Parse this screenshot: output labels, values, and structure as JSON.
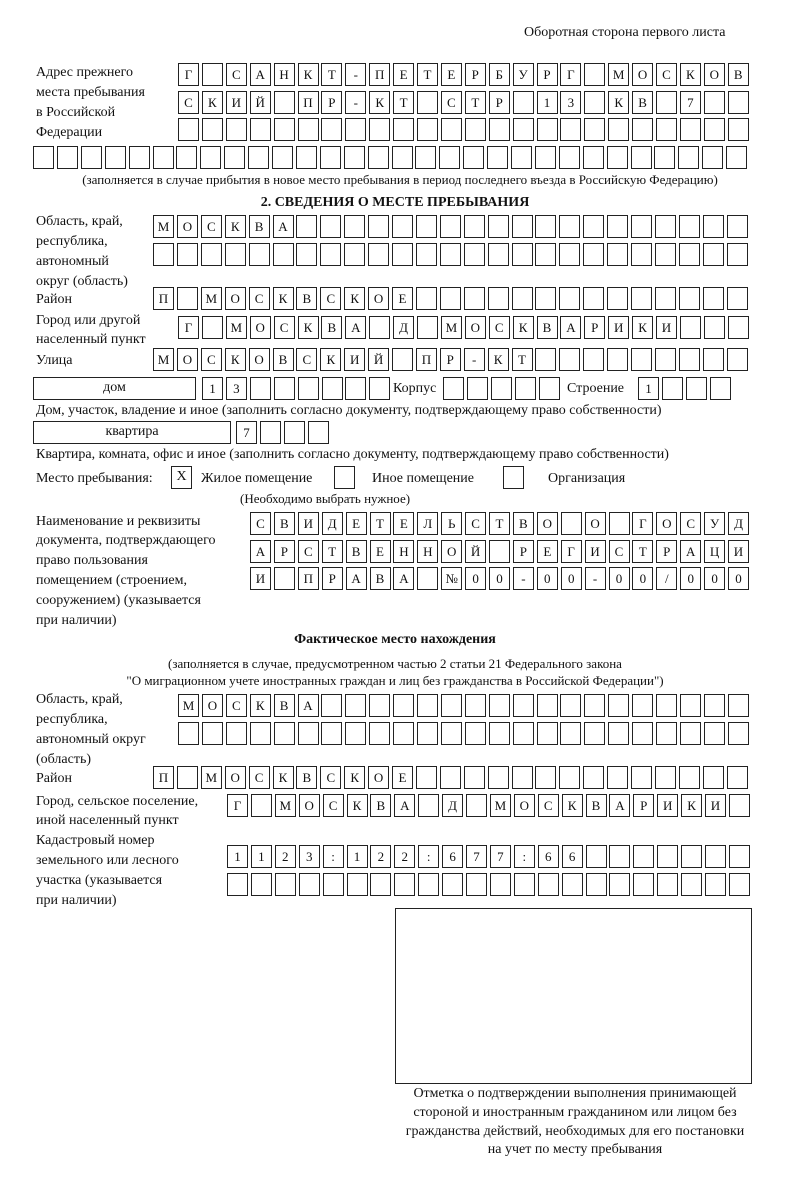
{
  "header": "Оборотная сторона первого листа",
  "previous_address": {
    "label": [
      "Адрес прежнего",
      "места пребывания",
      "в Российской",
      "Федерации"
    ],
    "rows": [
      [
        "Г",
        "",
        "С",
        "А",
        "Н",
        "К",
        "Т",
        "-",
        "П",
        "Е",
        "Т",
        "Е",
        "Р",
        "Б",
        "У",
        "Р",
        "Г",
        "",
        "М",
        "О",
        "С",
        "К",
        "О",
        "В"
      ],
      [
        "С",
        "К",
        "И",
        "Й",
        "",
        "П",
        "Р",
        "-",
        "К",
        "Т",
        "",
        "С",
        "Т",
        "Р",
        "",
        "1",
        "3",
        "",
        "К",
        "В",
        "",
        "7",
        "",
        ""
      ],
      [
        "",
        "",
        "",
        "",
        "",
        "",
        "",
        "",
        "",
        "",
        "",
        "",
        "",
        "",
        "",
        "",
        "",
        "",
        "",
        "",
        "",
        "",
        "",
        ""
      ],
      [
        "",
        "",
        "",
        "",
        "",
        "",
        "",
        "",
        "",
        "",
        "",
        "",
        "",
        "",
        "",
        "",
        "",
        "",
        "",
        "",
        "",
        "",
        "",
        "",
        "",
        "",
        "",
        "",
        "",
        ""
      ]
    ],
    "note": "(заполняется в случае прибытия в новое место пребывания в период последнего въезда в Российскую Федерацию)"
  },
  "section2": {
    "title": "2. СВЕДЕНИЯ О МЕСТЕ ПРЕБЫВАНИЯ",
    "region_label": [
      "Область, край,",
      "республика,",
      "автономный",
      "округ (область)"
    ],
    "region_rows": [
      [
        "М",
        "О",
        "С",
        "К",
        "В",
        "А",
        "",
        "",
        "",
        "",
        "",
        "",
        "",
        "",
        "",
        "",
        "",
        "",
        "",
        "",
        "",
        "",
        "",
        "",
        ""
      ],
      [
        "",
        "",
        "",
        "",
        "",
        "",
        "",
        "",
        "",
        "",
        "",
        "",
        "",
        "",
        "",
        "",
        "",
        "",
        "",
        "",
        "",
        "",
        "",
        "",
        ""
      ]
    ],
    "district_label": "Район",
    "district": [
      "П",
      "",
      "М",
      "О",
      "С",
      "К",
      "В",
      "С",
      "К",
      "О",
      "Е",
      "",
      "",
      "",
      "",
      "",
      "",
      "",
      "",
      "",
      "",
      "",
      "",
      "",
      ""
    ],
    "city_label": [
      "Город или другой",
      "населенный пункт"
    ],
    "city": [
      "Г",
      "",
      "М",
      "О",
      "С",
      "К",
      "В",
      "А",
      "",
      "Д",
      "",
      "М",
      "О",
      "С",
      "К",
      "В",
      "А",
      "Р",
      "И",
      "К",
      "И",
      "",
      "",
      ""
    ],
    "street_label": "Улица",
    "street": [
      "М",
      "О",
      "С",
      "К",
      "О",
      "В",
      "С",
      "К",
      "И",
      "Й",
      "",
      "П",
      "Р",
      "-",
      "К",
      "Т",
      "",
      "",
      "",
      "",
      "",
      "",
      "",
      "",
      ""
    ],
    "house_type": "дом",
    "house": [
      "1",
      "3",
      "",
      "",
      "",
      "",
      "",
      ""
    ],
    "building_label": "Корпус",
    "building": [
      "",
      "",
      "",
      "",
      ""
    ],
    "structure_label": "Строение",
    "structure": [
      "1",
      "",
      "",
      ""
    ],
    "house_note": "Дом, участок, владение и иное (заполнить согласно документу, подтверждающему право собственности)",
    "apt_type": "квартира",
    "apt": [
      "7",
      "",
      "",
      ""
    ],
    "apt_note": "Квартира, комната, офис и иное (заполнить согласно документу, подтверждающему право собственности)",
    "stay_label": "Место пребывания:",
    "stay_options": [
      {
        "label": "Жилое помещение",
        "mark": "X"
      },
      {
        "label": "Иное помещение",
        "mark": ""
      },
      {
        "label": "Организация",
        "mark": ""
      }
    ],
    "stay_note": "(Необходимо выбрать нужное)",
    "doc_label": [
      "Наименование и реквизиты",
      "документа, подтверждающего",
      "право пользования",
      "помещением (строением,",
      "сооружением) (указывается",
      "при наличии)"
    ],
    "doc_rows": [
      [
        "С",
        "В",
        "И",
        "Д",
        "Е",
        "Т",
        "Е",
        "Л",
        "Ь",
        "С",
        "Т",
        "В",
        "О",
        "",
        "О",
        "",
        "Г",
        "О",
        "С",
        "У",
        "Д"
      ],
      [
        "А",
        "Р",
        "С",
        "Т",
        "В",
        "Е",
        "Н",
        "Н",
        "О",
        "Й",
        "",
        "Р",
        "Е",
        "Г",
        "И",
        "С",
        "Т",
        "Р",
        "А",
        "Ц",
        "И"
      ],
      [
        "И",
        "",
        "П",
        "Р",
        "А",
        "В",
        "А",
        "",
        "№",
        "0",
        "0",
        "-",
        "0",
        "0",
        "-",
        "0",
        "0",
        "/",
        "0",
        "0",
        "0"
      ]
    ]
  },
  "actual": {
    "title": "Фактическое место нахождения",
    "note": [
      "(заполняется в случае, предусмотренном частью 2 статьи 21 Федерального закона",
      "\"О миграционном учете иностранных граждан и лиц без гражданства в Российской Федерации\")"
    ],
    "region_label": [
      "Область, край,",
      "республика,",
      "автономный округ",
      "(область)"
    ],
    "region_rows": [
      [
        "М",
        "О",
        "С",
        "К",
        "В",
        "А",
        "",
        "",
        "",
        "",
        "",
        "",
        "",
        "",
        "",
        "",
        "",
        "",
        "",
        "",
        "",
        "",
        "",
        ""
      ],
      [
        "",
        "",
        "",
        "",
        "",
        "",
        "",
        "",
        "",
        "",
        "",
        "",
        "",
        "",
        "",
        "",
        "",
        "",
        "",
        "",
        "",
        "",
        "",
        ""
      ]
    ],
    "district_label": "Район",
    "district": [
      "П",
      "",
      "М",
      "О",
      "С",
      "К",
      "В",
      "С",
      "К",
      "О",
      "Е",
      "",
      "",
      "",
      "",
      "",
      "",
      "",
      "",
      "",
      "",
      "",
      "",
      "",
      ""
    ],
    "city_label": [
      "Город, сельское поселение,",
      "иной населенный пункт"
    ],
    "city": [
      "Г",
      "",
      "М",
      "О",
      "С",
      "К",
      "В",
      "А",
      "",
      "Д",
      "",
      "М",
      "О",
      "С",
      "К",
      "В",
      "А",
      "Р",
      "И",
      "К",
      "И",
      ""
    ],
    "cadastral_label": [
      "Кадастровый номер",
      "земельного или лесного",
      "участка (указывается",
      "при наличии)"
    ],
    "cadastral_rows": [
      [
        "1",
        "1",
        "2",
        "3",
        ":",
        "1",
        "2",
        "2",
        ":",
        "6",
        "7",
        "7",
        ":",
        "6",
        "6",
        "",
        "",
        "",
        "",
        "",
        "",
        ""
      ],
      [
        "",
        "",
        "",
        "",
        "",
        "",
        "",
        "",
        "",
        "",
        "",
        "",
        "",
        "",
        "",
        "",
        "",
        "",
        "",
        "",
        "",
        ""
      ]
    ]
  },
  "confirmation": {
    "caption": [
      "Отметка о подтверждении выполнения принимающей",
      "стороной и иностранным гражданином или лицом без",
      "гражданства действий, необходимых для его постановки",
      "на учет по месту пребывания"
    ]
  }
}
